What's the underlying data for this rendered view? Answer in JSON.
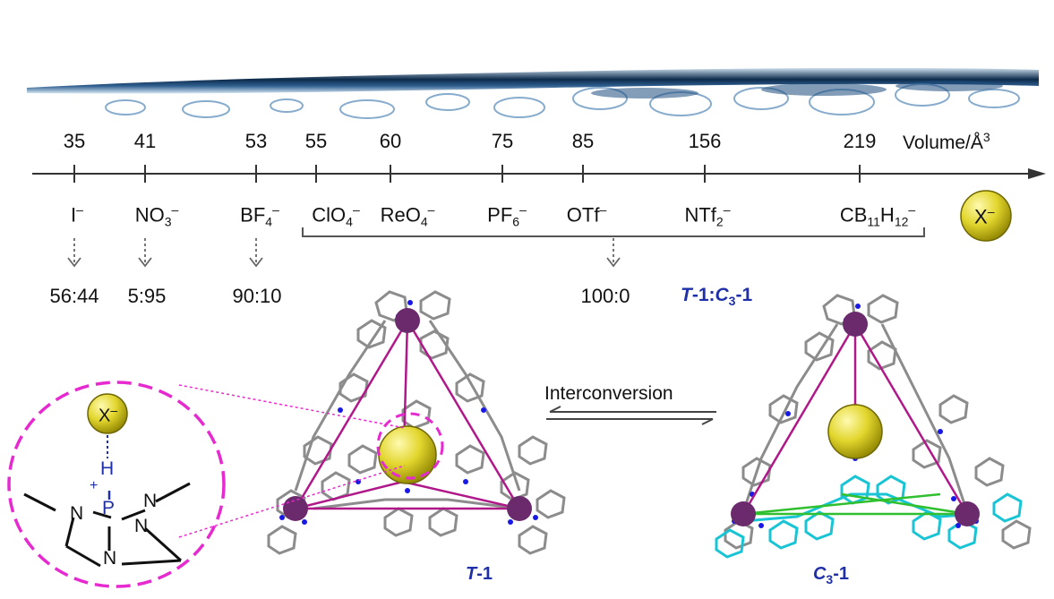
{
  "axis": {
    "title": "Volume/Å",
    "title_sup": "3"
  },
  "anions": [
    {
      "volume": "35",
      "formula": "I",
      "charge": "–"
    },
    {
      "volume": "41",
      "formula": "NO",
      "sub": "3",
      "charge": "–"
    },
    {
      "volume": "53",
      "formula": "BF",
      "sub": "4",
      "charge": "–"
    },
    {
      "volume": "55",
      "formula": "ClO",
      "sub": "4",
      "charge": "–"
    },
    {
      "volume": "60",
      "formula": "ReO",
      "sub": "4",
      "charge": "–"
    },
    {
      "volume": "75",
      "formula": "PF",
      "sub": "6",
      "charge": "–"
    },
    {
      "volume": "85",
      "formula": "OTf",
      "charge": "–"
    },
    {
      "volume": "156",
      "formula": "NTf",
      "sub": "2",
      "charge": "–"
    },
    {
      "volume": "219",
      "formula": "CB",
      "sub": "11",
      "formula2": "H",
      "sub2": "12",
      "charge": "–"
    }
  ],
  "guest_label": "X",
  "guest_charge": "–",
  "ratios": [
    "56:44",
    "5:95",
    "90:10",
    "100:0"
  ],
  "ratio_label": {
    "a": "T",
    "b": "-1:",
    "c": "C",
    "c_sub": "3",
    "d": "-1"
  },
  "interconversion": "Interconversion",
  "inset": {
    "guest": "X",
    "guest_charge": "–",
    "h": "H",
    "p": "P",
    "plus": "+",
    "n": "N"
  },
  "cage_left": {
    "italic": "T",
    "rest": "-1"
  },
  "cage_right": {
    "italic": "C",
    "sub": "3",
    "rest": "-1"
  },
  "colors": {
    "metal": "#6b2a6b",
    "edge": "#b0188a",
    "green_edge": "#2fbf2f",
    "cyan_ligand": "#19c4d4",
    "nitrogen": "#1919e6",
    "gray_ligand": "#8c8c8c",
    "guest": "#d8c928",
    "dash_circle": "#e62ad0",
    "label_blue": "#1f2fa8"
  }
}
